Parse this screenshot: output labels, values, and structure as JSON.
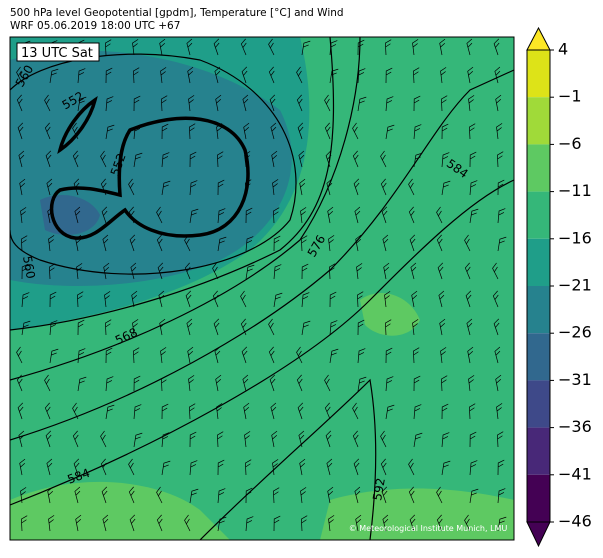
{
  "header": {
    "title": "500 hPa level Geopotential [gpdm], Temperature [°C] and Wind",
    "subtitle": "WRF 05.06.2019 18:00 UTC +67"
  },
  "time_label": "13 UTC Sat",
  "contour_labels": [
    "560",
    "552",
    "552",
    "560",
    "568",
    "576",
    "584",
    "584",
    "592"
  ],
  "credit": "© Meteorological Institute Munich, LMU",
  "colorbar": {
    "ticks": [
      4,
      {
        "value": -1,
        "label": "−1"
      },
      {
        "value": -6,
        "label": "−6"
      },
      {
        "value": -11,
        "label": "−11"
      },
      {
        "value": -16,
        "label": "−16"
      },
      {
        "value": -21,
        "label": "−21"
      },
      {
        "value": -26,
        "label": "−26"
      },
      {
        "value": -31,
        "label": "−31"
      },
      {
        "value": -36,
        "label": "−36"
      },
      {
        "value": -41,
        "label": "−41"
      },
      {
        "value": -46,
        "label": "−46"
      }
    ],
    "colors": [
      "#dde318",
      "#a0da39",
      "#5ec962",
      "#35b779",
      "#1f9e89",
      "#26828e",
      "#31688e",
      "#3e4989",
      "#482878",
      "#440154"
    ],
    "extend_colors": [
      "#fde725",
      "#440154"
    ]
  }
}
